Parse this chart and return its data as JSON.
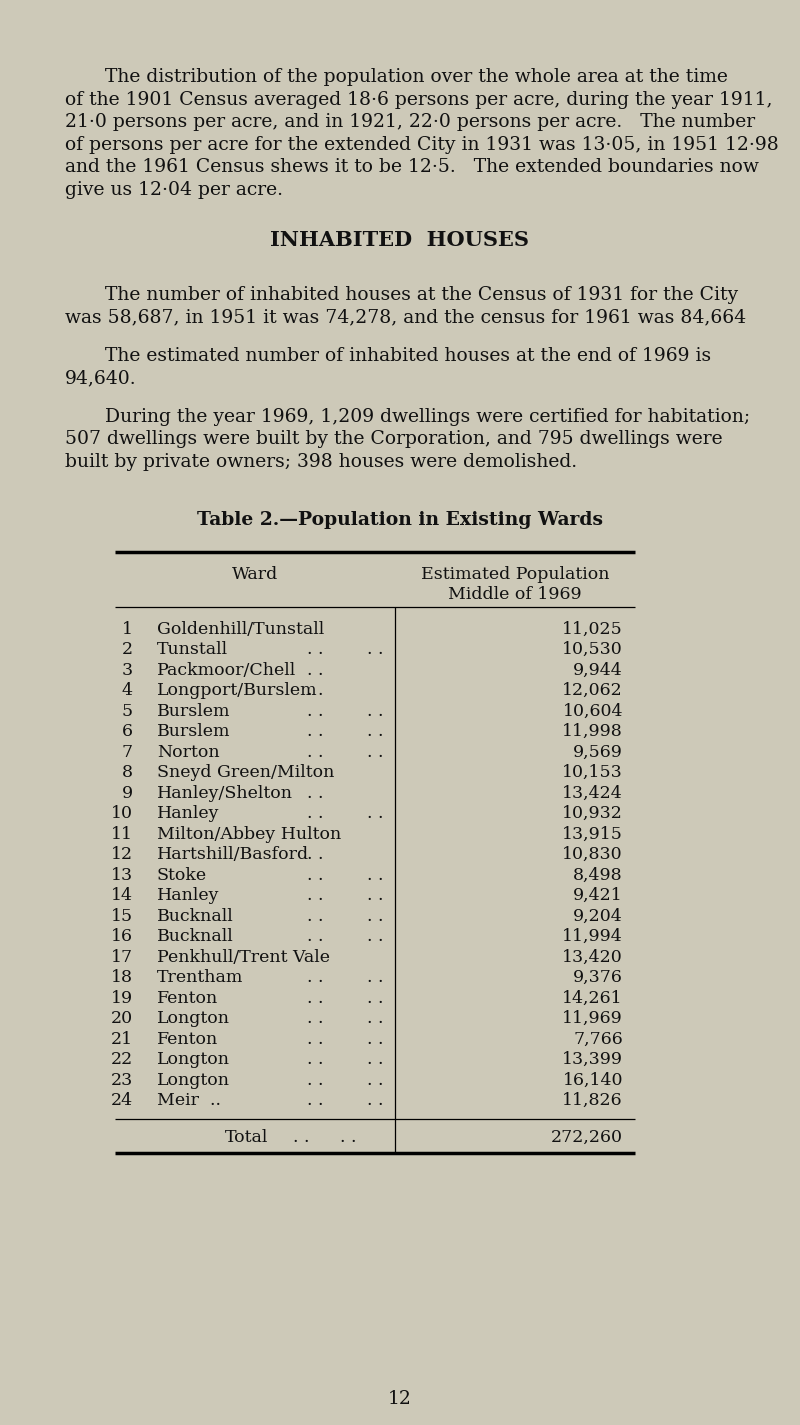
{
  "bg_color": "#cdc9b8",
  "text_color": "#111111",
  "page_number": "12",
  "p1_lines": [
    "The distribution of the population over the whole area at the time",
    "of the 1901 Census averaged 18·6 persons per acre, during the year 1911,",
    "21·0 persons per acre, and in 1921, 22·0 persons per acre.   The number",
    "of persons per acre for the extended City in 1931 was 13·05, in 1951 12·98",
    "and the 1961 Census shews it to be 12·5.   The extended boundaries now",
    "give us 12·04 per acre."
  ],
  "section_title": "INHABITED  HOUSES",
  "p2_lines": [
    "The number of inhabited houses at the Census of 1931 for the City",
    "was 58,687, in 1951 it was 74,278, and the census for 1961 was 84,664"
  ],
  "p3_lines": [
    "The estimated number of inhabited houses at the end of 1969 is",
    "94,640."
  ],
  "p4_lines": [
    "During the year 1969, 1,209 dwellings were certified for habitation;",
    "507 dwellings were built by the Corporation, and 795 dwellings were",
    "built by private owners; 398 houses were demolished."
  ],
  "table_title_bold": "Table 2.",
  "table_title_normal": "—Population in Existing Wards",
  "col_header1": "Ward",
  "col_header2a": "Estimated Population",
  "col_header2b": "Middle of 1969",
  "wards": [
    {
      "num": "1",
      "name": "Goldenhill/Tunstall",
      "d1": "",
      "d2": "",
      "pop": "11,025"
    },
    {
      "num": "2",
      "name": "Tunstall",
      "d1": ". .",
      "d2": ". .",
      "pop": "10,530"
    },
    {
      "num": "3",
      "name": "Packmoor/Chell",
      "d1": ". .",
      "d2": "",
      "pop": "9,944"
    },
    {
      "num": "4",
      "name": "Longport/Burslem",
      "d1": ". .",
      "d2": "",
      "pop": "12,062"
    },
    {
      "num": "5",
      "name": "Burslem",
      "d1": ". .",
      "d2": ". .",
      "pop": "10,604"
    },
    {
      "num": "6",
      "name": "Burslem",
      "d1": ". .",
      "d2": ". .",
      "pop": "11,998"
    },
    {
      "num": "7",
      "name": "Norton",
      "d1": ". .",
      "d2": ". .",
      "pop": "9,569"
    },
    {
      "num": "8",
      "name": "Sneyd Green/Milton",
      "d1": "",
      "d2": "",
      "pop": "10,153"
    },
    {
      "num": "9",
      "name": "Hanley/Shelton",
      "d1": ". .",
      "d2": "",
      "pop": "13,424"
    },
    {
      "num": "10",
      "name": "Hanley",
      "d1": ". .",
      "d2": ". .",
      "pop": "10,932"
    },
    {
      "num": "11",
      "name": "Milton/Abbey Hulton",
      "d1": "",
      "d2": "",
      "pop": "13,915"
    },
    {
      "num": "12",
      "name": "Hartshill/Basford",
      "d1": ". .",
      "d2": "",
      "pop": "10,830"
    },
    {
      "num": "13",
      "name": "Stoke",
      "d1": ". .",
      "d2": ". .",
      "pop": "8,498"
    },
    {
      "num": "14",
      "name": "Hanley",
      "d1": ". .",
      "d2": ". .",
      "pop": "9,421"
    },
    {
      "num": "15",
      "name": "Bucknall",
      "d1": ". .",
      "d2": ". .",
      "pop": "9,204"
    },
    {
      "num": "16",
      "name": "Bucknall",
      "d1": ". .",
      "d2": ". .",
      "pop": "11,994"
    },
    {
      "num": "17",
      "name": "Penkhull/Trent Vale",
      "d1": "",
      "d2": "",
      "pop": "13,420"
    },
    {
      "num": "18",
      "name": "Trentham",
      "d1": ". .",
      "d2": ". .",
      "pop": "9,376"
    },
    {
      "num": "19",
      "name": "Fenton",
      "d1": ". .",
      "d2": ". .",
      "pop": "14,261"
    },
    {
      "num": "20",
      "name": "Longton",
      "d1": ". .",
      "d2": ". .",
      "pop": "11,969"
    },
    {
      "num": "21",
      "name": "Fenton",
      "d1": ". .",
      "d2": ". .",
      "pop": "7,766"
    },
    {
      "num": "22",
      "name": "Longton",
      "d1": ". .",
      "d2": ". .",
      "pop": "13,399"
    },
    {
      "num": "23",
      "name": "Longton",
      "d1": ". .",
      "d2": ". .",
      "pop": "16,140"
    },
    {
      "num": "24",
      "name": "Meir  ..",
      "d1": ". .",
      "d2": ". .",
      "pop": "11,826"
    }
  ],
  "total_label": "Total",
  "total_pop": "272,260"
}
